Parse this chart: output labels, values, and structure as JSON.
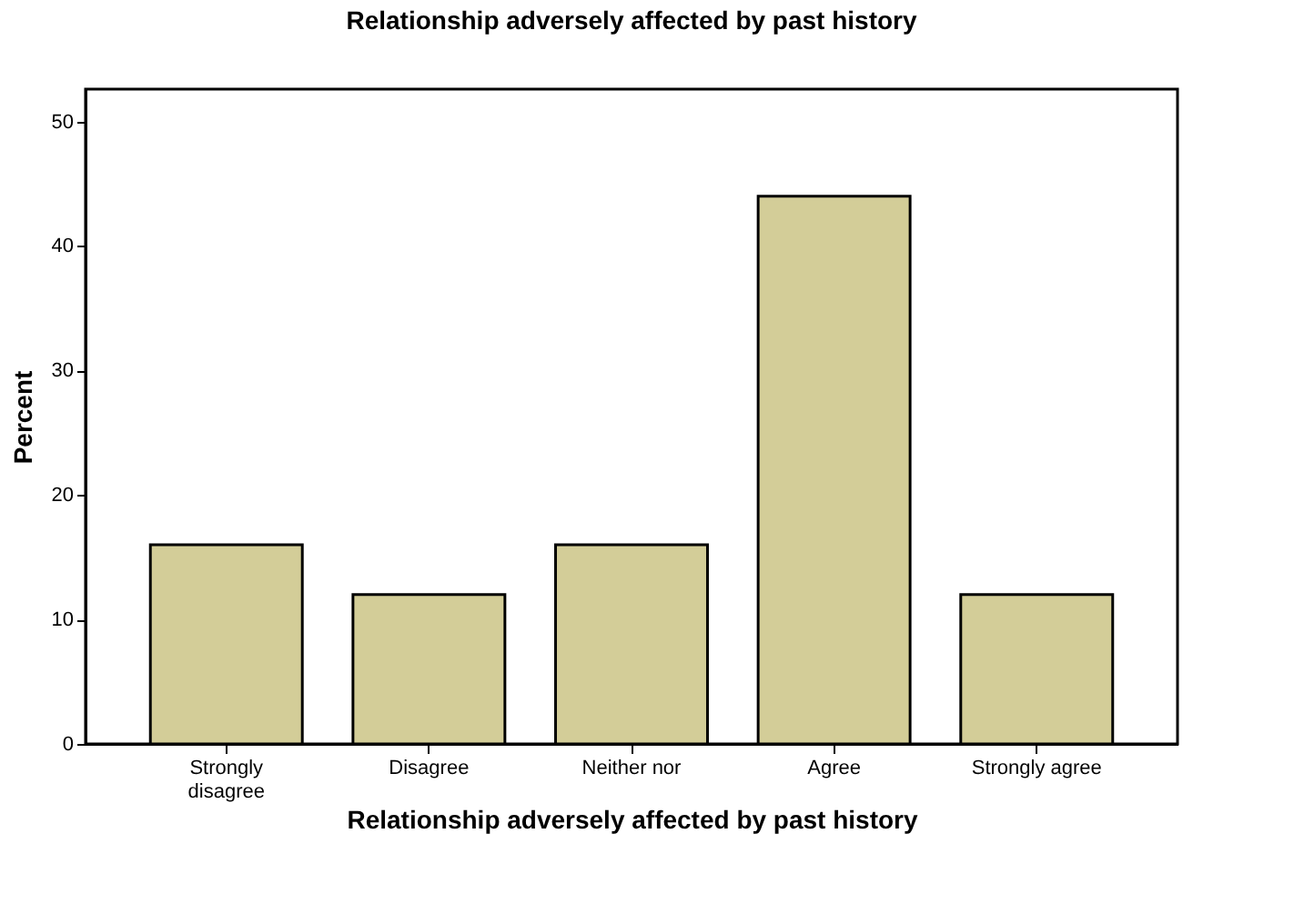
{
  "chart_data": {
    "type": "bar",
    "title": "Relationship adversely affected by past history",
    "xlabel": "Relationship adversely affected by past history",
    "ylabel": "Percent",
    "categories": [
      "Strongly\ndisagree",
      "Disagree",
      "Neither nor",
      "Agree",
      "Strongly agree"
    ],
    "values": [
      16,
      12,
      16,
      44,
      12
    ],
    "color": "#d3cd98",
    "ylim": [
      0,
      52.6
    ],
    "yticks": [
      0,
      10,
      20,
      30,
      40,
      50
    ],
    "grid": false
  }
}
